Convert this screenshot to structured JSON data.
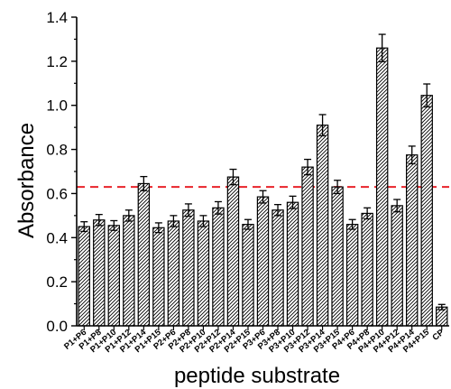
{
  "chart_data": {
    "type": "bar",
    "title": "",
    "xlabel": "peptide substrate",
    "ylabel": "Absorbance",
    "ylim": [
      0,
      1.4
    ],
    "yticks": [
      "0.0",
      "0.2",
      "0.4",
      "0.6",
      "0.8",
      "1.0",
      "1.2",
      "1.4"
    ],
    "grid": false,
    "legend": "none",
    "categories": [
      "P1+P6",
      "P1+P8",
      "P1+P10",
      "P1+P12",
      "P1+P14",
      "P1+P15",
      "P2+P6",
      "P2+P8",
      "P2+P10",
      "P2+P12",
      "P2+P14",
      "P2+P15",
      "P3+P6",
      "P3+P8",
      "P3+P10",
      "P3+P12",
      "P3+P14",
      "P3+P15",
      "P4+P6",
      "P4+P8",
      "P4+P10",
      "P4+P12",
      "P4+P14",
      "P4+P15",
      "CP"
    ],
    "values": [
      0.45,
      0.48,
      0.455,
      0.5,
      0.645,
      0.445,
      0.475,
      0.525,
      0.475,
      0.535,
      0.675,
      0.46,
      0.585,
      0.525,
      0.56,
      0.72,
      0.91,
      0.63,
      0.46,
      0.51,
      1.26,
      0.545,
      0.775,
      1.045,
      0.085
    ],
    "errors": [
      0.022,
      0.025,
      0.022,
      0.025,
      0.032,
      0.022,
      0.025,
      0.028,
      0.025,
      0.028,
      0.035,
      0.022,
      0.028,
      0.025,
      0.028,
      0.035,
      0.048,
      0.03,
      0.022,
      0.025,
      0.062,
      0.028,
      0.04,
      0.052,
      0.012
    ],
    "threshold": 0.63,
    "colors": {
      "bar_fill": "#ffffff",
      "hatch": "#000000",
      "threshold_line": "#e8232a"
    }
  }
}
